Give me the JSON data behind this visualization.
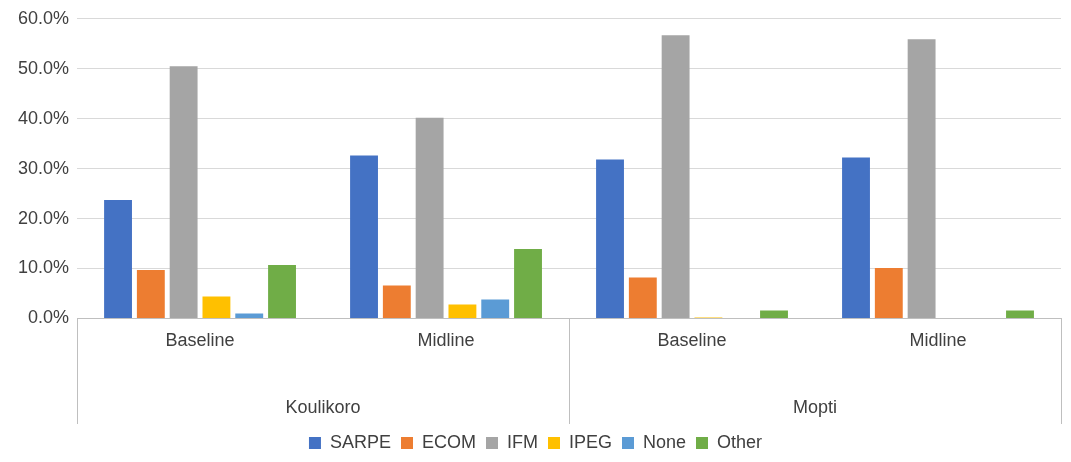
{
  "chart_data": {
    "type": "bar",
    "categories": [
      "Baseline",
      "Midline",
      "Baseline",
      "Midline"
    ],
    "annotations": [
      "Koulikoro",
      "Mopti"
    ],
    "series": [
      {
        "name": "SARPE",
        "color": "#4472c4",
        "values": [
          23.7,
          32.6,
          31.8,
          32.2
        ]
      },
      {
        "name": "ECOM",
        "color": "#ed7d31",
        "values": [
          9.7,
          6.6,
          8.2,
          10.1
        ]
      },
      {
        "name": "IFM",
        "color": "#a5a5a5",
        "values": [
          50.5,
          40.2,
          56.7,
          55.9
        ]
      },
      {
        "name": "IPEG",
        "color": "#ffc000",
        "values": [
          4.4,
          2.8,
          0.2,
          0
        ]
      },
      {
        "name": "None",
        "color": "#5b9bd5",
        "values": [
          1.0,
          3.8,
          0,
          0
        ]
      },
      {
        "name": "Other",
        "color": "#70ad47",
        "values": [
          10.7,
          13.9,
          1.6,
          1.6
        ]
      }
    ],
    "ylim": [
      0,
      60
    ],
    "yticks": [
      {
        "value": 0,
        "label": "0.0%"
      },
      {
        "value": 10,
        "label": "10.0%"
      },
      {
        "value": 20,
        "label": "20.0%"
      },
      {
        "value": 30,
        "label": "30.0%"
      },
      {
        "value": 40,
        "label": "40.0%"
      },
      {
        "value": 50,
        "label": "50.0%"
      },
      {
        "value": 60,
        "label": "60.0%"
      }
    ],
    "grid": "y",
    "legend": "bottom"
  }
}
